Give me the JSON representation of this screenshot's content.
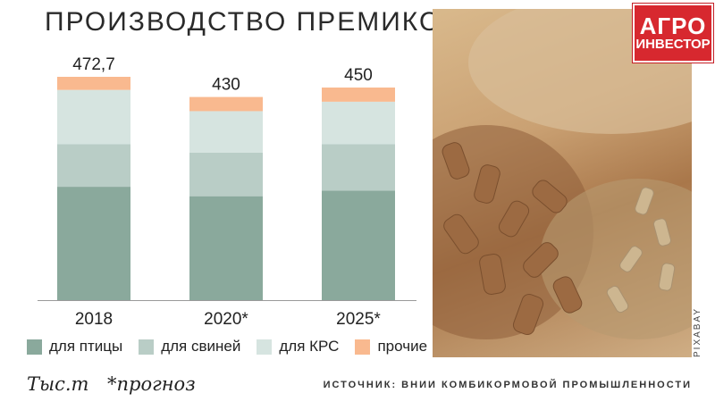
{
  "header": {
    "title": "ПРОИЗВОДСТВО ПРЕМИКСОВ"
  },
  "logo": {
    "line1": "АГРО",
    "line2": "ИНВЕСТОР"
  },
  "photo": {
    "credit": "PIXABAY"
  },
  "footer": {
    "unit": "Тыс.т",
    "note": "*прогноз",
    "source": "ИСТОЧНИК: ВНИИ КОМБИКОРМОВОЙ ПРОМЫШЛЕННОСТИ"
  },
  "colors": {
    "poultry": "#8aa99c",
    "pigs": "#b9cdc6",
    "cattle": "#d6e4e0",
    "other": "#f9b98f"
  },
  "chart_data": {
    "type": "bar",
    "stacked": true,
    "title": "ПРОИЗВОДСТВО ПРЕМИКСОВ",
    "categories": [
      "2018",
      "2020*",
      "2025*"
    ],
    "totals": [
      "472,7",
      "430",
      "450"
    ],
    "total_values": [
      472.7,
      430,
      450
    ],
    "ylim": [
      0,
      472.7
    ],
    "legend_position": "bottom",
    "series": [
      {
        "name": "для птицы",
        "values": [
          240,
          220,
          232
        ]
      },
      {
        "name": "для свиней",
        "values": [
          90,
          92,
          98
        ]
      },
      {
        "name": "для КРС",
        "values": [
          115,
          88,
          90
        ]
      },
      {
        "name": "прочие",
        "values": [
          27.7,
          30,
          30
        ]
      }
    ]
  }
}
